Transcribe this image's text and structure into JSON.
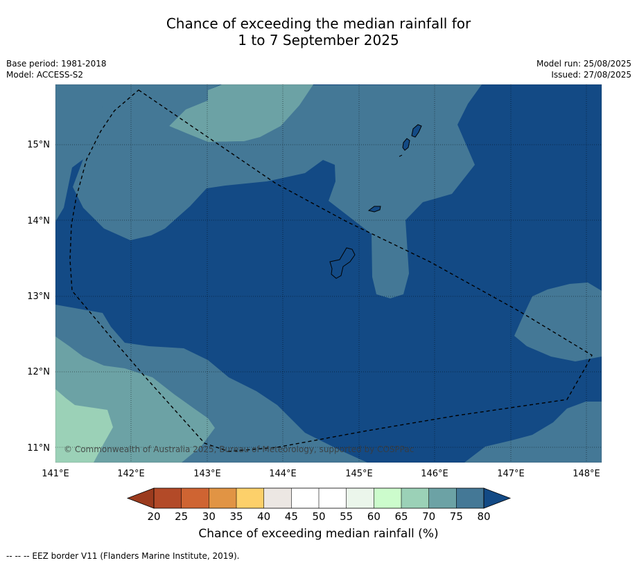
{
  "title": {
    "line1": "Chance of exceeding the median rainfall for",
    "line2": "1 to 7 September 2025"
  },
  "meta": {
    "base_period": "Base period: 1981-2018",
    "model": "Model: ACCESS-S2",
    "model_run": "Model run: 25/08/2025",
    "issued": "Issued: 27/08/2025"
  },
  "map": {
    "lon_ticks": [
      "141°E",
      "142°E",
      "143°E",
      "144°E",
      "145°E",
      "146°E",
      "147°E",
      "148°E"
    ],
    "lat_ticks": [
      "15°N",
      "14°N",
      "13°N",
      "12°N",
      "11°N"
    ],
    "copyright": "© Commonwealth of Australia 2025, Bureau of Meteorology, supported by COSPPac"
  },
  "colorbar": {
    "ticks": [
      "20",
      "25",
      "30",
      "35",
      "40",
      "45",
      "50",
      "55",
      "60",
      "65",
      "70",
      "75",
      "80"
    ],
    "colors": [
      "#b34a28",
      "#cf6432",
      "#e19444",
      "#fdd06a",
      "#ece7e3",
      "#ffffff",
      "#ffffff",
      "#ebf6eb",
      "#ccfccc",
      "#9bd1b7",
      "#6ca2a5",
      "#447896"
    ],
    "under_color": "#9b3b1e",
    "over_color": "#134a85",
    "label": "Chance of exceeding median rainfall (%)"
  },
  "footnote": "--  --  -- EEZ border V11 (Flanders Marine Institute, 2019).",
  "palette": {
    "c80": "#134a85",
    "c75": "#447896",
    "c70": "#6ca2a5",
    "c65": "#9bd1b7"
  }
}
